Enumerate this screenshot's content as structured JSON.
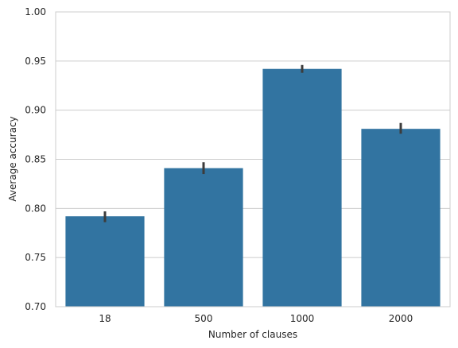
{
  "chart_data": {
    "type": "bar",
    "categories": [
      "18",
      "500",
      "1000",
      "2000"
    ],
    "values": [
      0.792,
      0.841,
      0.942,
      0.881
    ],
    "error_low": [
      0.786,
      0.835,
      0.938,
      0.876
    ],
    "error_high": [
      0.797,
      0.847,
      0.946,
      0.887
    ],
    "xlabel": "Number of clauses",
    "ylabel": "Average accuracy",
    "ylim": [
      0.7,
      1.0
    ],
    "yticks": [
      "0.70",
      "0.75",
      "0.80",
      "0.85",
      "0.90",
      "0.95",
      "1.00"
    ],
    "grid": "horizontal",
    "colors": {
      "bar": "#3274a1",
      "error": "#3c3c3c",
      "grid": "#cccccc",
      "spine": "#cccccc"
    }
  }
}
